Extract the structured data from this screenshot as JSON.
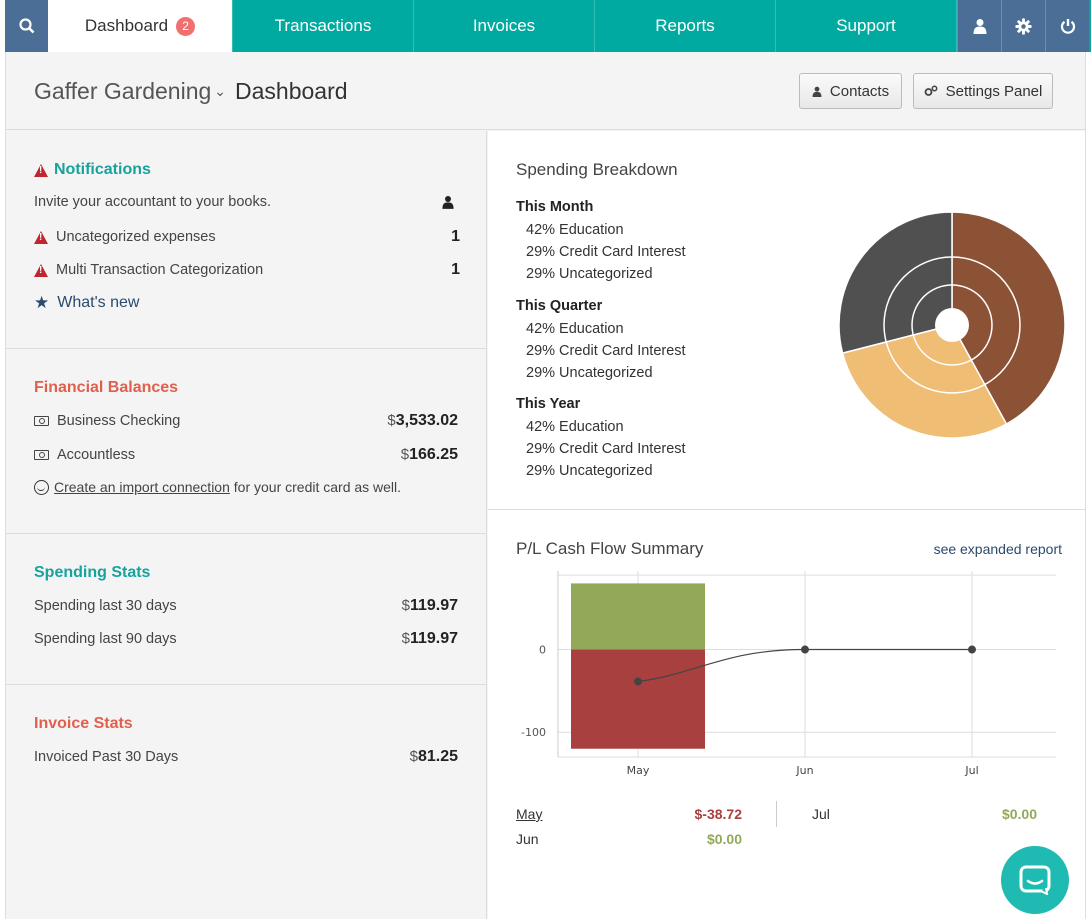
{
  "nav": {
    "tabs": [
      {
        "label": "Dashboard",
        "badge": "2"
      },
      {
        "label": "Transactions"
      },
      {
        "label": "Invoices"
      },
      {
        "label": "Reports"
      },
      {
        "label": "Support"
      }
    ],
    "icons": [
      "search-icon",
      "user-icon",
      "gear-icon",
      "power-icon"
    ]
  },
  "header": {
    "company": "Gaffer Gardening",
    "title": "Dashboard",
    "contacts_label": "Contacts",
    "settings_label": "Settings Panel"
  },
  "notifications": {
    "title": "Notifications",
    "invite": "Invite your accountant to your books.",
    "items": [
      {
        "label": "Uncategorized expenses",
        "count": "1"
      },
      {
        "label": "Multi Transaction Categorization",
        "count": "1"
      }
    ],
    "whats_new": "What's new"
  },
  "balances": {
    "title": "Financial Balances",
    "accounts": [
      {
        "name": "Business Checking",
        "currency": "$",
        "amount": "3,533.02"
      },
      {
        "name": "Accountless",
        "currency": "$",
        "amount": "166.25"
      }
    ],
    "import_link": "Create an import connection",
    "import_suffix": " for your credit card as well."
  },
  "spending": {
    "title": "Spending Stats",
    "rows": [
      {
        "label": "Spending last 30 days",
        "currency": "$",
        "amount": "119.97"
      },
      {
        "label": "Spending last 90 days",
        "currency": "$",
        "amount": "119.97"
      }
    ]
  },
  "invoice": {
    "title": "Invoice Stats",
    "rows": [
      {
        "label": "Invoiced Past 30 Days",
        "currency": "$",
        "amount": "81.25"
      }
    ]
  },
  "breakdown": {
    "title": "Spending Breakdown",
    "groups": [
      {
        "heading": "This Month",
        "items": [
          "42% Education",
          "29% Credit Card Interest",
          "29% Uncategorized"
        ]
      },
      {
        "heading": "This Quarter",
        "items": [
          "42% Education",
          "29% Credit Card Interest",
          "29% Uncategorized"
        ]
      },
      {
        "heading": "This Year",
        "items": [
          "42% Education",
          "29% Credit Card Interest",
          "29% Uncategorized"
        ]
      }
    ]
  },
  "cashflow": {
    "title": "P/L Cash Flow Summary",
    "expanded_link": "see expanded report",
    "summary": [
      {
        "month": "May",
        "value": "$-38.72"
      },
      {
        "month": "Jun",
        "value": "$0.00"
      },
      {
        "month": "Jul",
        "value": "$0.00"
      }
    ]
  },
  "colors": {
    "teal": "#00aaa0",
    "navy": "#4a6e95",
    "coral": "#e0604e",
    "income": "#93a95a",
    "expense": "#a94040",
    "pie_education": "#8c5235",
    "pie_credit": "#f0bd74",
    "pie_uncat": "#505050"
  },
  "chart_data": [
    {
      "type": "pie",
      "title": "Spending Breakdown",
      "categories": [
        "Education",
        "Credit Card Interest",
        "Uncategorized"
      ],
      "values": [
        42,
        29,
        29
      ]
    },
    {
      "type": "bar",
      "title": "P/L Cash Flow Summary",
      "categories": [
        "May",
        "Jun",
        "Jul"
      ],
      "series": [
        {
          "values": [
            80,
            0,
            0
          ]
        },
        {
          "values": [
            -120,
            0,
            0
          ]
        },
        {
          "values": [
            -38.72,
            0,
            0
          ]
        }
      ],
      "yticks": [
        0,
        -100
      ],
      "ylim": [
        -130,
        95
      ]
    }
  ]
}
